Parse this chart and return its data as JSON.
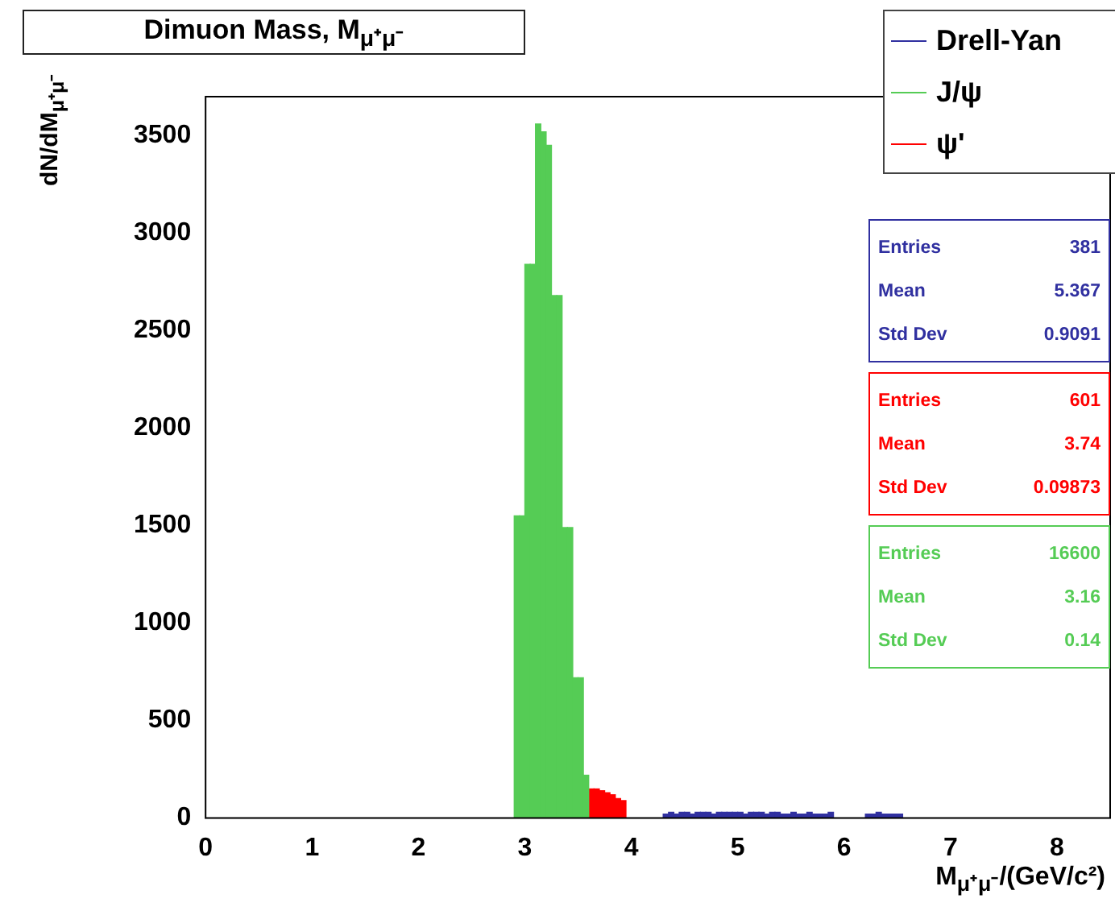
{
  "chart_data": {
    "type": "histogram",
    "title": "Dimuon Mass, M$_{μ⁺μ⁻}$",
    "xlabel": "M$_{μ⁺μ⁻}$/(GeV/c²)",
    "ylabel": "dN/dM$_{μ⁺μ⁻}$",
    "xlim": [
      0,
      8.5
    ],
    "xticks": [
      0,
      1,
      2,
      3,
      4,
      5,
      6,
      7,
      8
    ],
    "ylim": [
      0,
      3700
    ],
    "yticks": [
      0,
      500,
      1000,
      1500,
      2000,
      2500,
      3000,
      3500
    ],
    "grid": false,
    "legend": "top right",
    "bins": [
      2.9,
      2.95,
      3,
      3.05,
      3.1,
      3.15,
      3.2,
      3.25,
      3.3,
      3.35,
      3.4,
      3.45,
      3.5,
      3.55,
      3.6,
      3.65,
      3.7,
      3.75,
      3.8,
      3.85,
      3.9,
      3.95,
      4,
      4.05,
      4.1,
      4.15,
      4.2,
      4.25,
      4.3,
      4.35,
      4.4,
      4.45,
      4.5,
      4.55,
      4.6,
      4.65,
      4.7,
      4.75,
      4.8,
      4.85,
      4.9,
      4.95,
      5,
      5.05,
      5.1,
      5.15,
      5.2,
      5.25,
      5.3,
      5.35,
      5.4,
      5.45,
      5.5,
      5.55,
      5.6,
      5.65,
      5.7,
      5.75,
      5.8,
      5.85,
      5.9,
      5.95,
      6,
      6.05,
      6.1,
      6.15,
      6.2,
      6.25,
      6.3,
      6.35,
      6.4,
      6.45,
      6.5,
      6.55,
      6.6
    ],
    "series": [
      {
        "name": "Drell-Yan",
        "color": "#3030a0",
        "values": [
          null,
          null,
          null,
          null,
          null,
          null,
          null,
          null,
          null,
          null,
          null,
          null,
          null,
          null,
          null,
          null,
          null,
          null,
          null,
          null,
          null,
          null,
          null,
          null,
          null,
          null,
          null,
          null,
          20,
          30,
          20,
          30,
          30,
          20,
          30,
          30,
          30,
          20,
          30,
          30,
          30,
          30,
          30,
          20,
          30,
          30,
          30,
          20,
          30,
          30,
          20,
          20,
          30,
          20,
          20,
          30,
          20,
          20,
          20,
          30,
          null,
          null,
          null,
          null,
          null,
          null,
          20,
          20,
          30,
          20,
          20,
          20,
          20,
          null
        ]
      },
      {
        "name": "J/ψ",
        "color": "#55cc55",
        "values": [
          1550,
          1550,
          2840,
          2840,
          3560,
          3520,
          3450,
          2680,
          2680,
          1490,
          1490,
          720,
          720,
          220,
          null,
          null,
          null,
          null,
          null,
          null,
          null,
          null,
          null,
          null,
          null,
          null,
          null,
          null,
          null,
          null,
          null,
          null,
          null,
          null,
          null,
          null,
          null,
          null,
          null,
          null,
          null,
          null,
          null,
          null,
          null,
          null,
          null,
          null,
          null,
          null,
          null,
          null,
          null,
          null,
          null,
          null,
          null,
          null,
          null,
          null,
          null,
          null,
          null,
          null,
          null,
          null,
          null,
          null,
          null,
          null,
          null,
          null,
          null,
          null
        ]
      },
      {
        "name": "ψ'",
        "color": "#ff0000",
        "values": [
          null,
          null,
          null,
          null,
          null,
          null,
          null,
          null,
          null,
          null,
          null,
          null,
          null,
          null,
          150,
          150,
          140,
          130,
          120,
          100,
          90,
          null,
          null,
          null,
          null,
          null,
          null,
          null,
          null,
          null,
          null,
          null,
          null,
          null,
          null,
          null,
          null,
          null,
          null,
          null,
          null,
          null,
          null,
          null,
          null,
          null,
          null,
          null,
          null,
          null,
          null,
          null,
          null,
          null,
          null,
          null,
          null,
          null,
          null,
          null,
          null,
          null,
          null,
          null,
          null,
          null,
          null,
          null,
          null,
          null,
          null,
          null,
          null,
          null
        ]
      }
    ],
    "annotations": [
      "Entries 381",
      "Mean 5.367",
      "Std Dev 0.9091",
      "Entries 601",
      "Mean 3.74",
      "Std Dev 0.09873",
      "Entries 16600",
      "Mean 3.16",
      "Std Dev 0.14"
    ]
  }
}
